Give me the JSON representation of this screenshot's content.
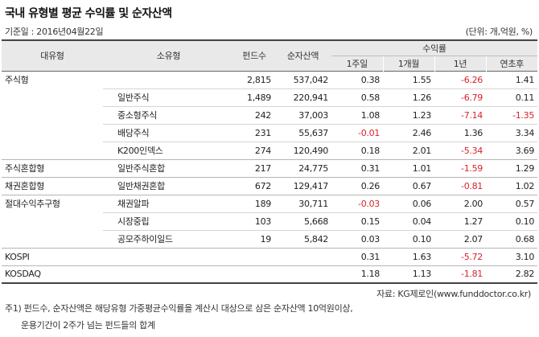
{
  "title": "국내 유형별 평균 수익률 및 순자산액",
  "date_label": "기준일 : 2016년04월22일",
  "unit_label": "(단위: 개,억원, %)",
  "headers": {
    "major": "대유형",
    "minor": "소유형",
    "funds": "펀드수",
    "assets": "순자산액",
    "return_group": "수익률",
    "w1": "1주일",
    "m1": "1개월",
    "y1": "1년",
    "ytd": "연초후"
  },
  "rows": [
    {
      "major": "주식형",
      "minor": "",
      "funds": "2,815",
      "assets": "537,042",
      "w1": "0.38",
      "m1": "1.55",
      "y1": "-6.26",
      "ytd": "1.41"
    },
    {
      "major": "",
      "minor": "일반주식",
      "funds": "1,489",
      "assets": "220,941",
      "w1": "0.58",
      "m1": "1.26",
      "y1": "-6.79",
      "ytd": "0.11"
    },
    {
      "major": "",
      "minor": "중소형주식",
      "funds": "242",
      "assets": "37,003",
      "w1": "1.08",
      "m1": "1.23",
      "y1": "-7.14",
      "ytd": "-1.35"
    },
    {
      "major": "",
      "minor": "배당주식",
      "funds": "231",
      "assets": "55,637",
      "w1": "-0.01",
      "m1": "2.46",
      "y1": "1.36",
      "ytd": "3.34"
    },
    {
      "major": "",
      "minor": "K200인덱스",
      "funds": "274",
      "assets": "120,490",
      "w1": "0.18",
      "m1": "2.01",
      "y1": "-5.34",
      "ytd": "3.69"
    },
    {
      "major": "주식혼합형",
      "minor": "일반주식혼합",
      "funds": "217",
      "assets": "24,775",
      "w1": "0.31",
      "m1": "1.01",
      "y1": "-1.59",
      "ytd": "1.29"
    },
    {
      "major": "채권혼합형",
      "minor": "일반채권혼합",
      "funds": "672",
      "assets": "129,417",
      "w1": "0.26",
      "m1": "0.67",
      "y1": "-0.81",
      "ytd": "1.02"
    },
    {
      "major": "절대수익추구형",
      "minor": "채권알파",
      "funds": "189",
      "assets": "30,711",
      "w1": "-0.03",
      "m1": "0.06",
      "y1": "2.00",
      "ytd": "0.57"
    },
    {
      "major": "",
      "minor": "시장중립",
      "funds": "103",
      "assets": "5,668",
      "w1": "0.15",
      "m1": "0.04",
      "y1": "1.27",
      "ytd": "0.10"
    },
    {
      "major": "",
      "minor": "공모주하이일드",
      "funds": "19",
      "assets": "5,842",
      "w1": "0.03",
      "m1": "0.10",
      "y1": "2.07",
      "ytd": "0.68"
    },
    {
      "major": "KOSPI",
      "minor": "",
      "funds": "",
      "assets": "",
      "w1": "0.31",
      "m1": "1.63",
      "y1": "-5.72",
      "ytd": "3.10"
    },
    {
      "major": "KOSDAQ",
      "minor": "",
      "funds": "",
      "assets": "",
      "w1": "1.18",
      "m1": "1.13",
      "y1": "-1.81",
      "ytd": "2.82"
    }
  ],
  "source": "자료: KG제로인(www.funddoctor.co.kr)",
  "note_line1": "주1) 펀드수, 순자산액은 해당유형 가중평균수익률을 계산시 대상으로 삼은 순자산액 10억원이상,",
  "note_line2": "운용기간이 2주가 넘는 펀드들의 합계",
  "colors": {
    "negative": "#d8232a",
    "header_bg": "#e9e9e9"
  }
}
